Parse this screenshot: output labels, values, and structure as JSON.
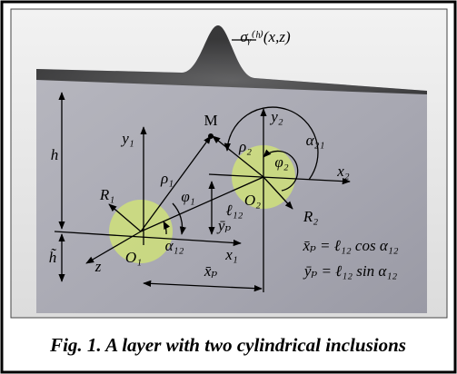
{
  "figure": {
    "labels": {
      "stress": "σᵧ⁽ʰ⁾(x,z)",
      "M": "M",
      "y1": "y₁",
      "y2": "y₂",
      "h": "h",
      "h_tilde": "h̃",
      "rho1": "ρ₁",
      "rho2": "ρ₂",
      "alpha21": "α₂₁",
      "phi2": "φ₂",
      "x2": "x₂",
      "R1": "R₁",
      "phi1": "φ₁",
      "O2": "O₂",
      "l12": "ℓ₁₂",
      "yp": "ȳₚ",
      "R2": "R₂",
      "O1": "O₁",
      "alpha12": "α₁₂",
      "x1": "x₁",
      "z": "z",
      "xp": "x̄ₚ"
    },
    "equations": [
      "x̄ₚ = ℓ₁₂ cos α₁₂",
      "ȳₚ = ℓ₁₂ sin α₁₂"
    ],
    "caption": "Fig. 1. A layer with two cylindrical inclusions"
  }
}
